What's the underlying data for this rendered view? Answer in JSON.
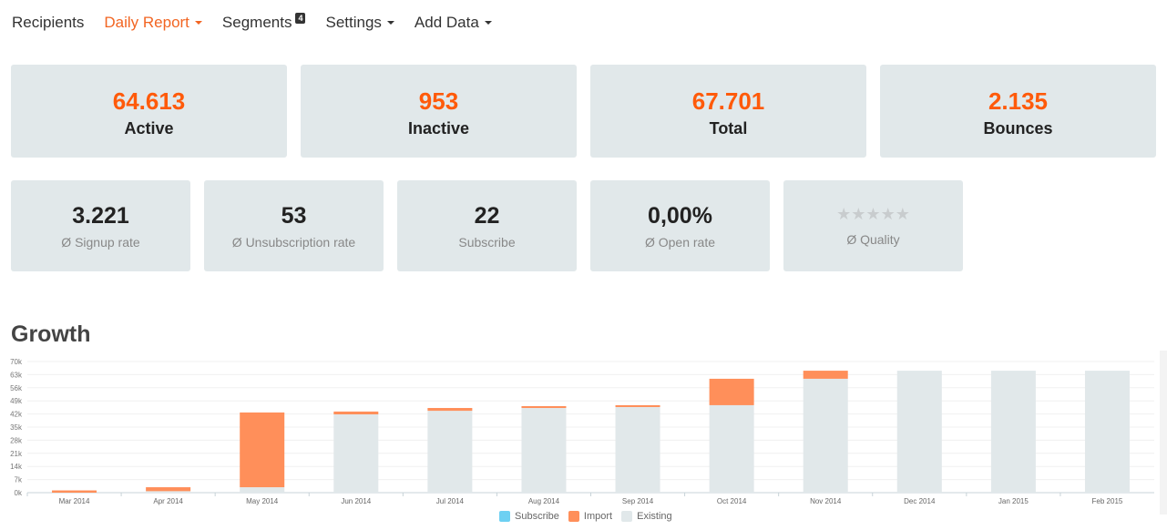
{
  "nav": [
    {
      "label": "Recipients"
    },
    {
      "label": "Daily Report",
      "active": true,
      "caret": true
    },
    {
      "label": "Segments",
      "badge": "4"
    },
    {
      "label": "Settings",
      "caret": true
    },
    {
      "label": "Add Data",
      "caret": true
    }
  ],
  "stats_main": [
    {
      "value": "64.613",
      "label": "Active"
    },
    {
      "value": "953",
      "label": "Inactive"
    },
    {
      "value": "67.701",
      "label": "Total"
    },
    {
      "value": "2.135",
      "label": "Bounces"
    }
  ],
  "stats_secondary": [
    {
      "value": "3.221",
      "label": "Ø Signup rate"
    },
    {
      "value": "53",
      "label": "Ø Unsubscription rate"
    },
    {
      "value": "22",
      "label": "Subscribe"
    },
    {
      "value": "0,00%",
      "label": "Ø Open rate"
    },
    {
      "stars": "★★★★★",
      "label": "Ø Quality",
      "rating": 0
    }
  ],
  "growth_title": "Growth",
  "colors": {
    "subscribe": "#6dd0f2",
    "import": "#ff8f5a",
    "existing": "#e1e8ea",
    "accent": "#ff5a0a"
  },
  "chart_data": {
    "type": "bar",
    "stacked": true,
    "title": "Growth",
    "categories": [
      "Mar 2014",
      "Apr 2014",
      "May 2014",
      "Jun 2014",
      "Jul 2014",
      "Aug 2014",
      "Sep 2014",
      "Oct 2014",
      "Nov 2014",
      "Dec 2014",
      "Jan 2015",
      "Feb 2015"
    ],
    "series": [
      {
        "name": "Subscribe",
        "values": [
          0,
          0,
          0,
          0,
          0,
          0,
          0,
          0,
          0,
          0,
          0,
          0
        ]
      },
      {
        "name": "Import",
        "values": [
          1.2,
          2.1,
          39.9,
          1.5,
          1.5,
          1.0,
          1.0,
          14.1,
          4.3,
          0,
          0,
          0
        ]
      },
      {
        "name": "Existing",
        "values": [
          0,
          0.8,
          2.9,
          41.8,
          43.7,
          45.2,
          45.7,
          46.7,
          60.8,
          65.1,
          65.1,
          65.1
        ]
      }
    ],
    "yticks": [
      "0k",
      "7k",
      "14k",
      "21k",
      "28k",
      "35k",
      "42k",
      "49k",
      "56k",
      "63k",
      "70k"
    ],
    "ylim": [
      0,
      70
    ],
    "yunit": "thousands",
    "legend": "bottom-center",
    "grid": true
  }
}
